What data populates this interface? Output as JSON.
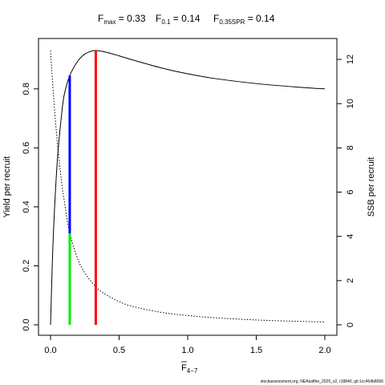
{
  "chart_data": {
    "type": "line",
    "title": {
      "fmax": {
        "main": "F",
        "sub": "max",
        "value": " = 0.33"
      },
      "f01": {
        "main": "F",
        "sub": "0.1",
        "value": " = 0.14"
      },
      "fspr": {
        "main": "F",
        "sub": "0.35SPR",
        "value": " = 0.14"
      }
    },
    "xlabel": {
      "main": "F",
      "sub": "4−7"
    },
    "ylabel_left": "Yield per recruit",
    "ylabel_right": "SSB per recruit",
    "xlim": [
      0,
      2.0
    ],
    "ylim_left": [
      0,
      0.93
    ],
    "ylim_right": [
      0,
      12.4
    ],
    "x_ticks": [
      "0.0",
      "0.5",
      "1.0",
      "1.5",
      "2.0"
    ],
    "y_left_ticks": [
      "0.0",
      "0.2",
      "0.4",
      "0.6",
      "0.8"
    ],
    "y_right_ticks": [
      "0",
      "2",
      "4",
      "6",
      "8",
      "10",
      "12"
    ],
    "series": [
      {
        "axis": "left",
        "style": "solid",
        "color": "#000000",
        "x": [
          0.0,
          0.02,
          0.05,
          0.08,
          0.1,
          0.14,
          0.2,
          0.25,
          0.3,
          0.33,
          0.4,
          0.5,
          0.6,
          0.8,
          1.0,
          1.2,
          1.5,
          1.8,
          2.0
        ],
        "y": [
          0.0,
          0.3,
          0.56,
          0.71,
          0.78,
          0.845,
          0.895,
          0.918,
          0.928,
          0.93,
          0.925,
          0.912,
          0.898,
          0.872,
          0.851,
          0.835,
          0.818,
          0.806,
          0.8
        ]
      },
      {
        "axis": "right",
        "style": "dotted",
        "color": "#000000",
        "x": [
          0.0,
          0.02,
          0.05,
          0.08,
          0.1,
          0.14,
          0.2,
          0.25,
          0.3,
          0.35,
          0.4,
          0.5,
          0.6,
          0.8,
          1.0,
          1.2,
          1.5,
          1.8,
          2.0
        ],
        "y": [
          12.4,
          10.5,
          8.2,
          6.5,
          5.6,
          4.15,
          2.95,
          2.35,
          1.93,
          1.6,
          1.38,
          1.05,
          0.83,
          0.57,
          0.42,
          0.32,
          0.22,
          0.16,
          0.13
        ]
      }
    ],
    "reference_lines": [
      {
        "name": "Fmax",
        "x": 0.33,
        "y_from": 0,
        "y_to": 0.93,
        "color": "#ff0000"
      },
      {
        "name": "F0.1",
        "x": 0.14,
        "y_from": 0.31,
        "y_to": 0.845,
        "color": "#0000ff"
      },
      {
        "name": "F0.35SPR",
        "x": 0.14,
        "y_from": 0,
        "y_to": 0.31,
        "color": "#00ee00"
      }
    ],
    "source_note": "stockassessment.org, NEAsafthe_2025_v2, r18840, git:1cc464b8066",
    "grid": false,
    "legend": "none"
  }
}
